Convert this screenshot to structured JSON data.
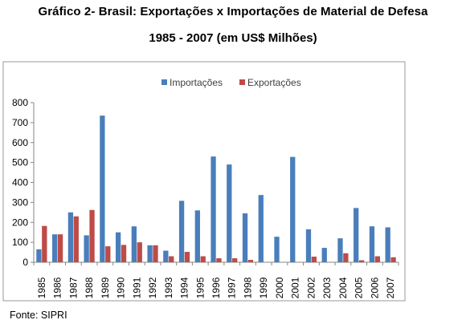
{
  "header": {
    "title": "Gráfico 2- Brasil: Exportações x Importações de Material de Defesa",
    "subtitle": "1985 - 2007 (em US$ Milhões)"
  },
  "footer": {
    "source": "Fonte: SIPRI"
  },
  "chart_data": {
    "type": "bar",
    "title": "",
    "xlabel": "",
    "ylabel": "",
    "ylim": [
      0,
      800
    ],
    "yticks": [
      0,
      100,
      200,
      300,
      400,
      500,
      600,
      700,
      800
    ],
    "grid": false,
    "legend": "top-center",
    "categories": [
      "1985",
      "1986",
      "1987",
      "1988",
      "1989",
      "1990",
      "1991",
      "1992",
      "1993",
      "1994",
      "1995",
      "1996",
      "1997",
      "1998",
      "1999",
      "2000",
      "2001",
      "2002",
      "2003",
      "2004",
      "2005",
      "2006",
      "2007"
    ],
    "series": [
      {
        "name": "Importações",
        "color": "#4a7ebb",
        "values": [
          65,
          140,
          250,
          135,
          735,
          150,
          180,
          85,
          58,
          308,
          260,
          530,
          490,
          245,
          337,
          128,
          528,
          165,
          72,
          120,
          272,
          180,
          175
        ]
      },
      {
        "name": "Exportações",
        "color": "#be4b48",
        "values": [
          182,
          140,
          230,
          262,
          80,
          87,
          100,
          85,
          30,
          52,
          30,
          20,
          20,
          12,
          0,
          0,
          0,
          28,
          0,
          45,
          10,
          30,
          25
        ]
      }
    ]
  }
}
